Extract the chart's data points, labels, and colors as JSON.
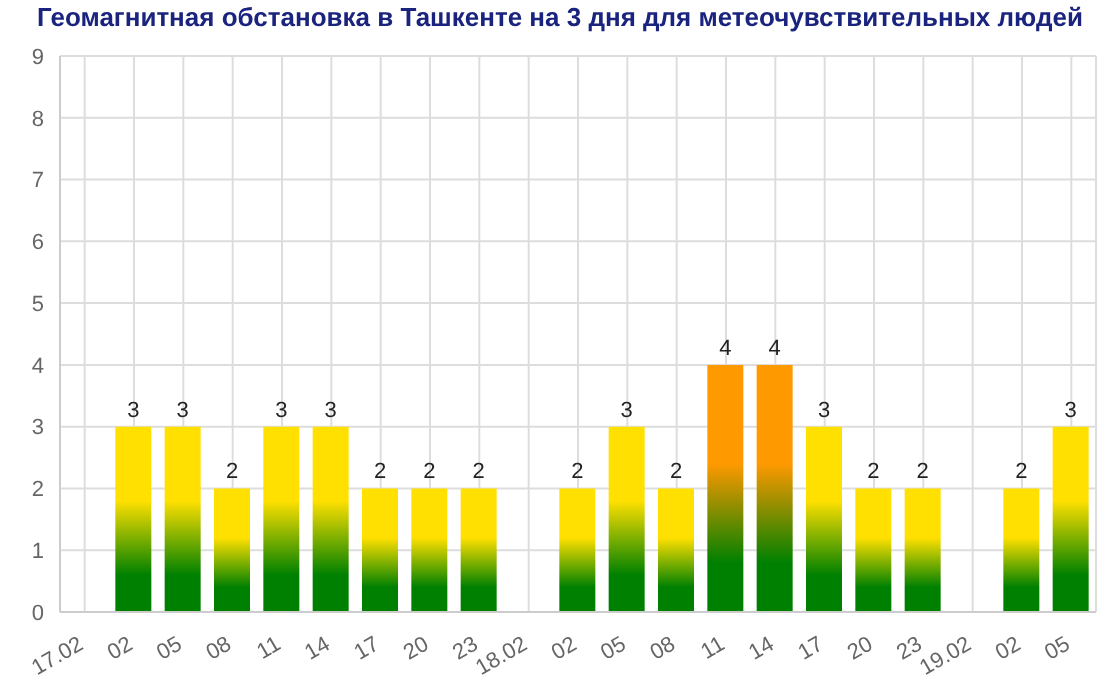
{
  "chart_data": {
    "type": "bar",
    "title": "Геомагнитная обстановка в Ташкенте на 3 дня для метеочувствительных людей",
    "categories": [
      "17.02",
      "02",
      "05",
      "08",
      "11",
      "14",
      "17",
      "20",
      "23",
      "18.02",
      "02",
      "05",
      "08",
      "11",
      "14",
      "17",
      "20",
      "23",
      "19.02",
      "02",
      "05"
    ],
    "values": [
      null,
      3,
      3,
      2,
      3,
      3,
      2,
      2,
      2,
      null,
      2,
      3,
      2,
      4,
      4,
      3,
      2,
      2,
      null,
      2,
      3
    ],
    "colors": [
      "#ffe000",
      "#ffe000",
      "#ffe000",
      "#ffe000",
      "#ffe000",
      "#ffe000",
      "#ffe000",
      "#ffe000",
      "#ffe000",
      "#ffe000",
      "#ffe000",
      "#ffe000",
      "#ffe000",
      "#ff9900",
      "#ff9900",
      "#ffe000",
      "#ffe000",
      "#ffe000",
      "#ffe000",
      "#ffe000",
      "#ffe000"
    ],
    "ylim": [
      0,
      9
    ],
    "yticks": [
      0,
      1,
      2,
      3,
      4,
      5,
      6,
      7,
      8,
      9
    ],
    "grid": true,
    "data_labels": true
  }
}
